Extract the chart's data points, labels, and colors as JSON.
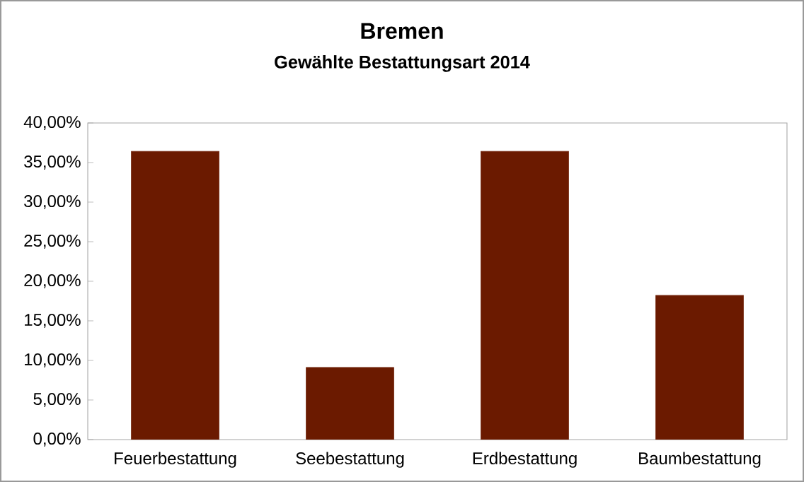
{
  "chart_data": {
    "type": "bar",
    "title": "Bremen",
    "subtitle": "Gewählte Bestattungsart 2014",
    "categories": [
      "Feuerbestattung",
      "Seebestattung",
      "Erdbestattung",
      "Baumbestattung"
    ],
    "values": [
      36.4,
      9.1,
      36.4,
      18.2
    ],
    "color": "#6b1a00",
    "ylim": [
      0,
      40
    ],
    "yticks": [
      {
        "value": 0,
        "label": "0,00%"
      },
      {
        "value": 5,
        "label": "5,00%"
      },
      {
        "value": 10,
        "label": "10,00%"
      },
      {
        "value": 15,
        "label": "15,00%"
      },
      {
        "value": 20,
        "label": "20,00%"
      },
      {
        "value": 25,
        "label": "25,00%"
      },
      {
        "value": 30,
        "label": "30,00%"
      },
      {
        "value": 35,
        "label": "35,00%"
      },
      {
        "value": 40,
        "label": "40,00%"
      }
    ],
    "grid": false
  }
}
